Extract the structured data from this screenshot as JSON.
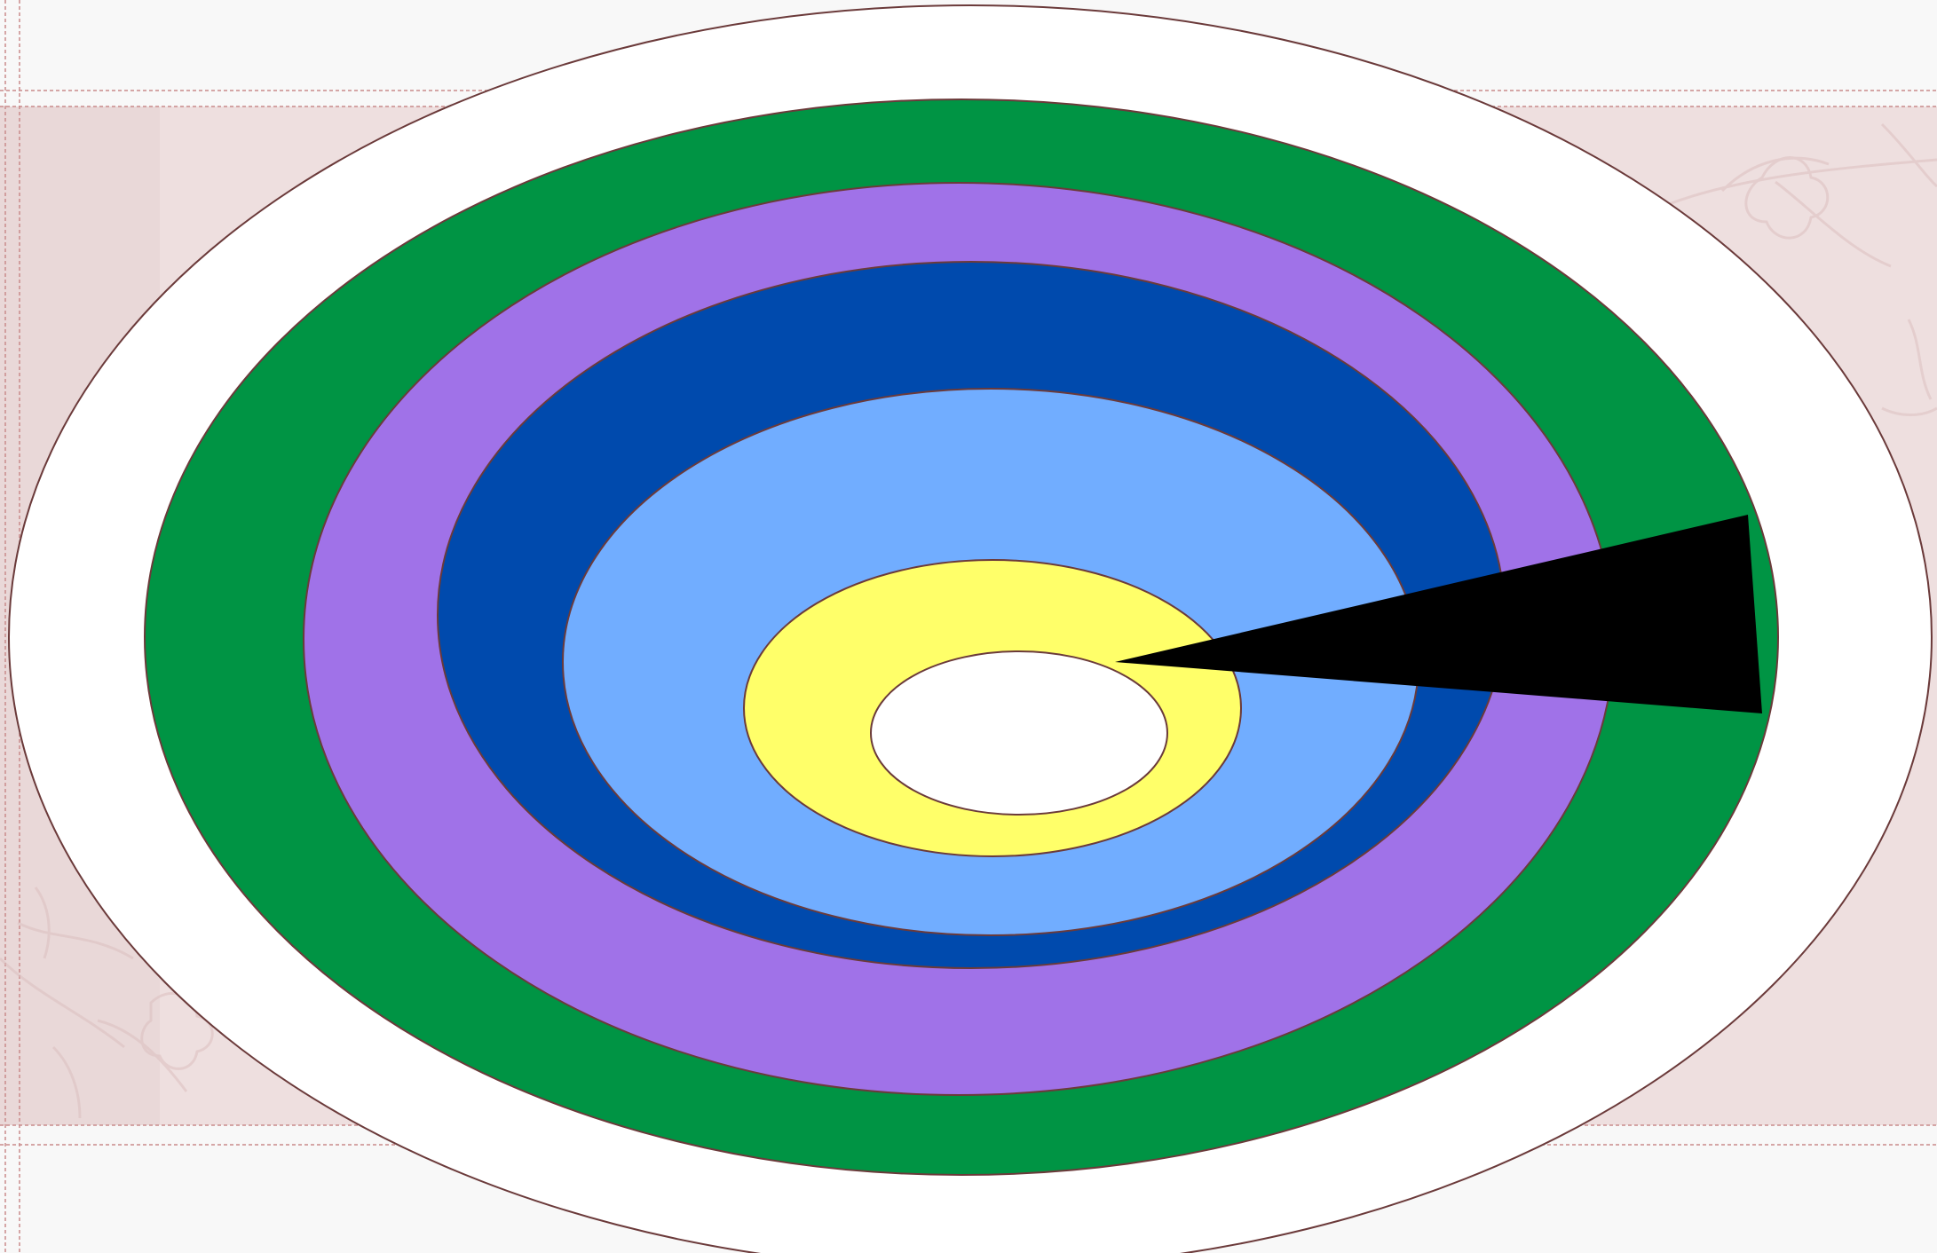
{
  "slide": {
    "background_color": "#f8f8f8",
    "band_color": "#eedfdf",
    "band_shade_color": "#e9d8d8",
    "guide_line_color": "#c98b8b",
    "floral_decoration": "floral-watermark"
  },
  "diagram": {
    "outline_color": "#6b3a3a",
    "rings": [
      {
        "name": "outer-ring",
        "color": "#ffffff"
      },
      {
        "name": "ring-2",
        "color": "#009444"
      },
      {
        "name": "ring-3",
        "color": "#a072e8"
      },
      {
        "name": "ring-4",
        "color": "#004aad"
      },
      {
        "name": "ring-5",
        "color": "#71adff"
      },
      {
        "name": "ring-6",
        "color": "#ffff69"
      },
      {
        "name": "center-ring",
        "color": "#ffffff"
      }
    ],
    "pointer": {
      "color": "#000000"
    }
  }
}
